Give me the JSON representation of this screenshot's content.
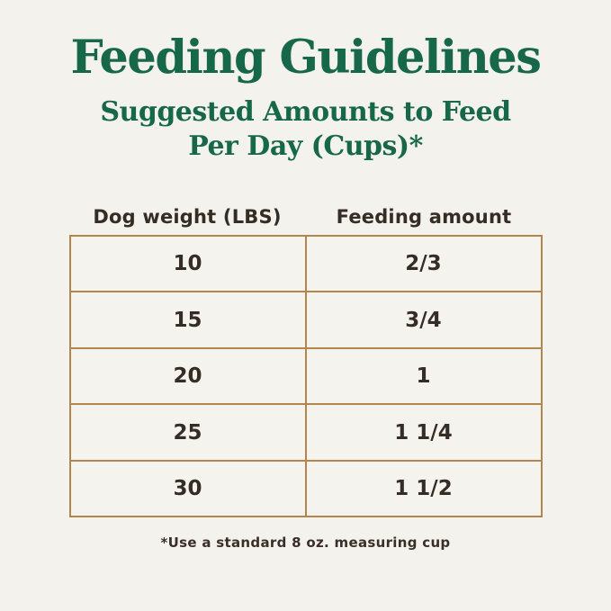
{
  "page": {
    "title": "Feeding Guidelines",
    "subtitle_line1": "Suggested Amounts to Feed",
    "subtitle_line2": "Per Day (Cups)*",
    "footnote": "*Use a standard 8 oz. measuring cup"
  },
  "table": {
    "headers": [
      "Dog weight (LBS)",
      "Feeding amount"
    ],
    "rows": [
      {
        "weight": "10",
        "amount": "2/3"
      },
      {
        "weight": "15",
        "amount": "3/4"
      },
      {
        "weight": "20",
        "amount": "1"
      },
      {
        "weight": "25",
        "amount": "1 1/4"
      },
      {
        "weight": "30",
        "amount": "1 1/2"
      }
    ]
  },
  "chart_data": {
    "type": "table",
    "title": "Feeding Guidelines",
    "subtitle": "Suggested Amounts to Feed Per Day (Cups)*",
    "columns": [
      "Dog weight (LBS)",
      "Feeding amount"
    ],
    "rows": [
      [
        "10",
        "2/3"
      ],
      [
        "15",
        "3/4"
      ],
      [
        "20",
        "1"
      ],
      [
        "25",
        "1 1/4"
      ],
      [
        "30",
        "1 1/2"
      ]
    ],
    "footnote": "*Use a standard 8 oz. measuring cup"
  },
  "colors": {
    "background": "#f4f2ec",
    "heading_green": "#17684a",
    "table_border": "#b5854f",
    "text_dark": "#362c26"
  }
}
